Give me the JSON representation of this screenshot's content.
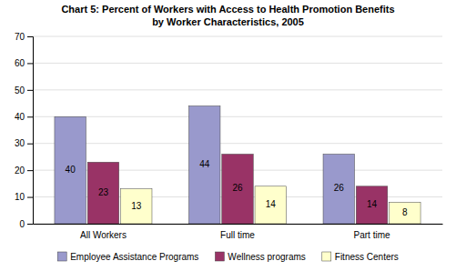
{
  "chart_data": {
    "type": "bar",
    "title": "Chart 5: Percent of Workers with Access to Health Promotion Benefits",
    "subtitle": "by Worker Characteristics, 2005",
    "categories": [
      "All Workers",
      "Full time",
      "Part time"
    ],
    "series": [
      {
        "name": "Employee Assistance Programs",
        "values": [
          40,
          44,
          26
        ],
        "color": "#9999CC"
      },
      {
        "name": "Wellness programs",
        "values": [
          23,
          26,
          14
        ],
        "color": "#993366"
      },
      {
        "name": "Fitness Centers",
        "values": [
          13,
          14,
          8
        ],
        "color": "#FFFFCC"
      }
    ],
    "ylim": [
      0,
      70
    ],
    "yticks": [
      0,
      10,
      20,
      30,
      40,
      50,
      60,
      70
    ],
    "grid": true,
    "data_labels": true,
    "legend": "bottom"
  }
}
